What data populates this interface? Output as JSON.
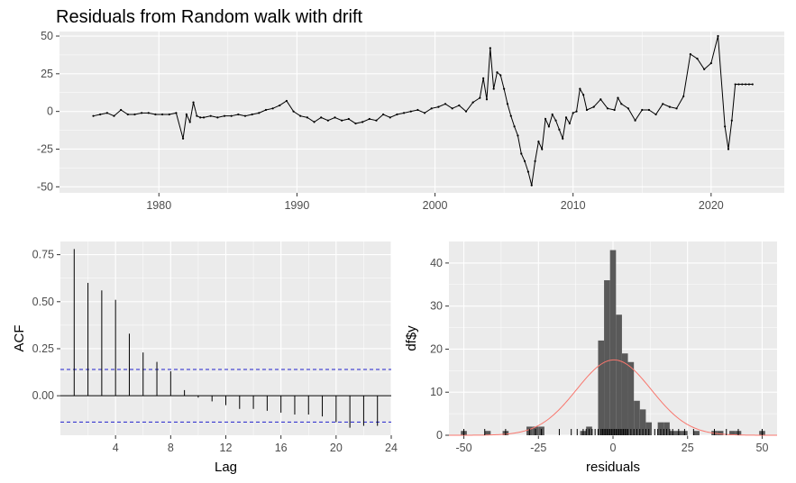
{
  "chart_data": [
    {
      "type": "line",
      "title": "Residuals from Random walk with drift",
      "xlabel": "",
      "ylabel": "",
      "xlim": [
        1972.8,
        2025.3
      ],
      "ylim": [
        -54,
        53
      ],
      "x_ticks": [
        1980,
        1990,
        2000,
        2010,
        2020
      ],
      "y_ticks": [
        -50,
        -25,
        0,
        25,
        50
      ],
      "grid": true,
      "series": [
        {
          "x": [
            1975.25,
            1975.75,
            1976.25,
            1976.75,
            1977.25,
            1977.75,
            1978.25,
            1978.75,
            1979.25,
            1979.75,
            1980.25,
            1980.75,
            1981.25,
            1981.75,
            1982.0,
            1982.25,
            1982.5,
            1982.75,
            1983.0,
            1983.25,
            1983.75,
            1984.25,
            1984.75,
            1985.25,
            1985.75,
            1986.25,
            1986.75,
            1987.25,
            1987.75,
            1988.25,
            1988.75,
            1989.25,
            1989.75,
            1990.25,
            1990.75,
            1991.25,
            1991.75,
            1992.25,
            1992.75,
            1993.25,
            1993.75,
            1994.25,
            1994.75,
            1995.25,
            1995.75,
            1996.25,
            1996.75,
            1997.25,
            1997.75,
            1998.25,
            1998.75,
            1999.25,
            1999.75,
            2000.25,
            2000.75,
            2001.25,
            2001.75,
            2002.25,
            2002.75,
            2003.25,
            2003.5,
            2003.75,
            2004.0,
            2004.25,
            2004.5,
            2004.75,
            2005.0,
            2005.25,
            2005.5,
            2005.75,
            2006.0,
            2006.25,
            2006.5,
            2006.75,
            2007.0,
            2007.25,
            2007.5,
            2007.75,
            2008.0,
            2008.25,
            2008.5,
            2008.75,
            2009.0,
            2009.25,
            2009.5,
            2009.75,
            2010.0,
            2010.25,
            2010.5,
            2010.75,
            2011.0,
            2011.5,
            2012.0,
            2012.5,
            2013.0,
            2013.25,
            2013.5,
            2014.0,
            2014.5,
            2015.0,
            2015.5,
            2016.0,
            2016.5,
            2017.0,
            2017.5,
            2018.0,
            2018.5,
            2019.0,
            2019.5,
            2020.0,
            2020.5,
            2021.0,
            2021.25,
            2021.5,
            2021.75,
            2022.0,
            2022.25,
            2022.5,
            2022.75,
            2023.0
          ],
          "y": [
            -3,
            -2,
            -1,
            -3,
            1,
            -2,
            -2,
            -1,
            -1,
            -2,
            -2,
            -2,
            -1,
            -18,
            -2,
            -7,
            6,
            -3,
            -4,
            -4,
            -3,
            -4,
            -3,
            -3,
            -2,
            -3,
            -2,
            -1,
            1,
            2,
            4,
            7,
            0,
            -3,
            -4,
            -7,
            -4,
            -6,
            -4,
            -6,
            -5,
            -8,
            -7,
            -5,
            -6,
            -2,
            -4,
            -2,
            -1,
            0,
            1,
            -1,
            2,
            3,
            5,
            2,
            4,
            0,
            6,
            9,
            22,
            8,
            42,
            15,
            26,
            24,
            15,
            5,
            -3,
            -10,
            -16,
            -28,
            -33,
            -40,
            -49,
            -33,
            -20,
            -25,
            -5,
            -10,
            -2,
            -6,
            -12,
            -18,
            -4,
            -8,
            -1,
            0,
            15,
            11,
            1,
            3,
            8,
            2,
            1,
            9,
            5,
            2,
            -6,
            1,
            1,
            -2,
            5,
            3,
            2,
            10,
            38,
            35,
            28,
            32,
            50,
            -10,
            -25,
            -6,
            18,
            18,
            18,
            18,
            18,
            18
          ]
        }
      ]
    },
    {
      "type": "bar",
      "title": "",
      "xlabel": "Lag",
      "ylabel": "ACF",
      "xlim": [
        0,
        24
      ],
      "ylim": [
        -0.21,
        0.82
      ],
      "x_ticks": [
        4,
        8,
        12,
        16,
        20,
        24
      ],
      "y_ticks": [
        0.0,
        0.25,
        0.5,
        0.75
      ],
      "confidence_band": 0.14,
      "lags": [
        1,
        2,
        3,
        4,
        5,
        6,
        7,
        8,
        9,
        10,
        11,
        12,
        13,
        14,
        15,
        16,
        17,
        18,
        19,
        20,
        21,
        22,
        23
      ],
      "values": [
        0.78,
        0.6,
        0.56,
        0.51,
        0.33,
        0.23,
        0.18,
        0.13,
        0.03,
        -0.01,
        -0.03,
        -0.05,
        -0.07,
        -0.07,
        -0.08,
        -0.09,
        -0.1,
        -0.1,
        -0.11,
        -0.14,
        -0.17,
        -0.16,
        -0.16
      ]
    },
    {
      "type": "bar",
      "title": "",
      "xlabel": "residuals",
      "ylabel": "df$y",
      "xlim": [
        -55,
        55
      ],
      "ylim": [
        0,
        45
      ],
      "x_ticks": [
        -50,
        -25,
        0,
        25,
        50
      ],
      "y_ticks": [
        0,
        10,
        20,
        30,
        40
      ],
      "histogram": {
        "bins": [
          [
            -51,
            -49,
            1
          ],
          [
            -43,
            -41,
            1
          ],
          [
            -37,
            -35,
            1
          ],
          [
            -29,
            -27,
            2
          ],
          [
            -27,
            -25,
            2
          ],
          [
            -25,
            -23,
            2
          ],
          [
            -11,
            -9,
            1
          ],
          [
            -9,
            -7,
            2
          ],
          [
            -5,
            -3,
            22
          ],
          [
            -3,
            -1,
            36
          ],
          [
            -1,
            1,
            43
          ],
          [
            1,
            3,
            28
          ],
          [
            3,
            5,
            19
          ],
          [
            5,
            7,
            17
          ],
          [
            7,
            9,
            8
          ],
          [
            9,
            11,
            6
          ],
          [
            11,
            13,
            3
          ],
          [
            15,
            17,
            3
          ],
          [
            17,
            19,
            3
          ],
          [
            19,
            21,
            1
          ],
          [
            21,
            23,
            1
          ],
          [
            23,
            25,
            1
          ],
          [
            27,
            29,
            1
          ],
          [
            33,
            35,
            1
          ],
          [
            35,
            37,
            1
          ],
          [
            39,
            41,
            1
          ],
          [
            41,
            43,
            1
          ],
          [
            49,
            51,
            1
          ]
        ]
      },
      "normal_curve": {
        "mean": 0.3,
        "sd": 12.5,
        "peak": 17.5,
        "color": "#f8766d"
      },
      "rug": [
        -50,
        -43,
        -36,
        -28,
        -26,
        -24,
        -18,
        -14,
        -12,
        -10,
        -9,
        -8,
        -7,
        -6,
        -5,
        -4,
        -3.5,
        -3,
        -2.5,
        -2,
        -1.5,
        -1,
        -0.5,
        0,
        0.5,
        1,
        1.5,
        2,
        2.5,
        3,
        3.5,
        4,
        4.5,
        5,
        6,
        7,
        8,
        9,
        10,
        11,
        12,
        14,
        15,
        16,
        17,
        18,
        19,
        20,
        22,
        24,
        27,
        34,
        38,
        42,
        50
      ]
    }
  ],
  "colors": {
    "panel": "#ebebeb",
    "grid": "#ffffff",
    "band": "#2222cc",
    "bars": "#595959",
    "text": "#4d4d4d"
  }
}
